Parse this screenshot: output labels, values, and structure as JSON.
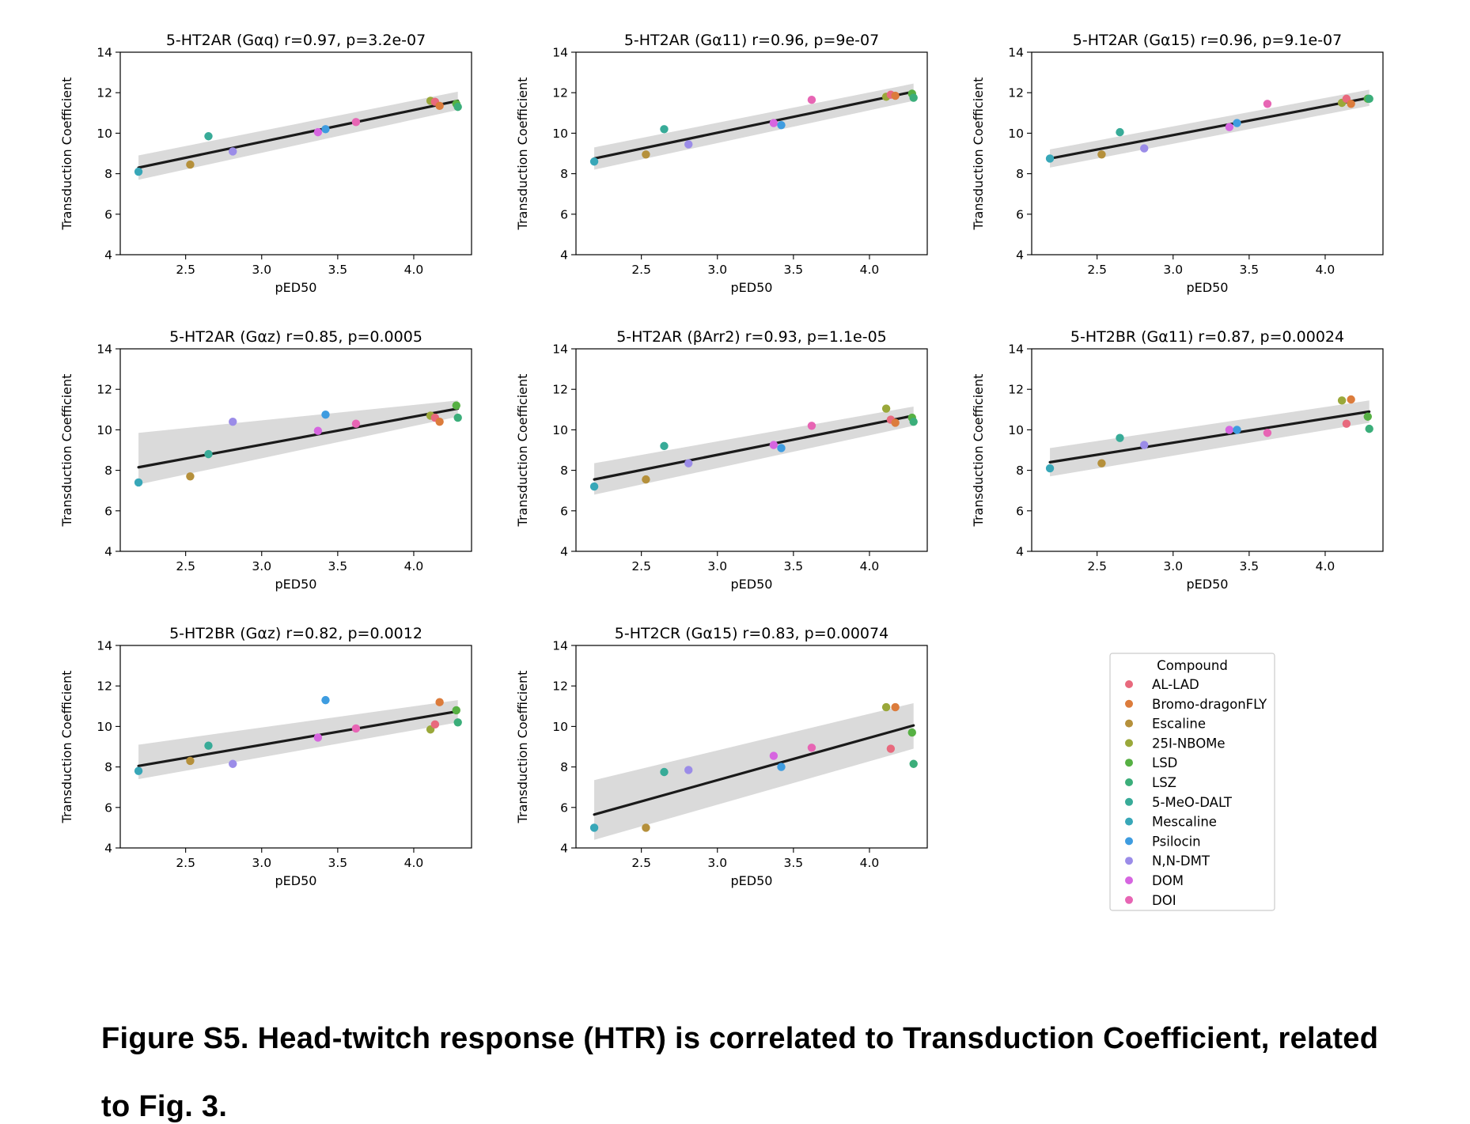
{
  "figure": {
    "caption_line1": "Figure S5. Head-twitch response (HTR) is correlated to Transduction Coefficient, related",
    "caption_line2": "to Fig. 3."
  },
  "legend": {
    "title": "Compound",
    "items": [
      {
        "name": "AL-LAD",
        "color": "#e8697d"
      },
      {
        "name": "Bromo-dragonFLY",
        "color": "#dc7c3c"
      },
      {
        "name": "Escaline",
        "color": "#b5903b"
      },
      {
        "name": "25I-NBOMe",
        "color": "#9aa83a"
      },
      {
        "name": "LSD",
        "color": "#56b043"
      },
      {
        "name": "LSZ",
        "color": "#3bae7a"
      },
      {
        "name": "5-MeO-DALT",
        "color": "#38ab98"
      },
      {
        "name": "Mescaline",
        "color": "#38a7b8"
      },
      {
        "name": "Psilocin",
        "color": "#3e9ce0"
      },
      {
        "name": "N,N-DMT",
        "color": "#9b8ce8"
      },
      {
        "name": "DOM",
        "color": "#d665e0"
      },
      {
        "name": "DOI",
        "color": "#e765b4"
      }
    ]
  },
  "chart_data": [
    {
      "type": "scatter",
      "title": "5-HT2AR (Gαq) r=0.97, p=3.2e-07",
      "xlabel": "pED50",
      "ylabel": "Transduction Coefficient",
      "xlim": [
        2.07,
        4.38
      ],
      "ylim": [
        4,
        14
      ],
      "xticks": [
        "2.5",
        "3.0",
        "3.5",
        "4.0"
      ],
      "yticks": [
        "4",
        "6",
        "8",
        "10",
        "12",
        "14"
      ],
      "points": [
        {
          "compound": "Mescaline",
          "x": 2.19,
          "y": 8.1
        },
        {
          "compound": "Escaline",
          "x": 2.53,
          "y": 8.45
        },
        {
          "compound": "5-MeO-DALT",
          "x": 2.65,
          "y": 9.85
        },
        {
          "compound": "N,N-DMT",
          "x": 2.81,
          "y": 9.1
        },
        {
          "compound": "DOM",
          "x": 3.37,
          "y": 10.05
        },
        {
          "compound": "Psilocin",
          "x": 3.42,
          "y": 10.2
        },
        {
          "compound": "DOI",
          "x": 3.62,
          "y": 10.55
        },
        {
          "compound": "25I-NBOMe",
          "x": 4.11,
          "y": 11.6
        },
        {
          "compound": "AL-LAD",
          "x": 4.14,
          "y": 11.55
        },
        {
          "compound": "Bromo-dragonFLY",
          "x": 4.17,
          "y": 11.35
        },
        {
          "compound": "LSD",
          "x": 4.28,
          "y": 11.45
        },
        {
          "compound": "LSZ",
          "x": 4.29,
          "y": 11.3
        }
      ],
      "fit": {
        "x": [
          2.19,
          4.29
        ],
        "y": [
          8.3,
          11.6
        ],
        "ci_lower": [
          7.7,
          11.15
        ],
        "ci_upper": [
          8.9,
          12.05
        ]
      }
    },
    {
      "type": "scatter",
      "title": "5-HT2AR (Gα11) r=0.96, p=9e-07",
      "xlabel": "pED50",
      "ylabel": "Transduction Coefficient",
      "xlim": [
        2.07,
        4.38
      ],
      "ylim": [
        4,
        14
      ],
      "xticks": [
        "2.5",
        "3.0",
        "3.5",
        "4.0"
      ],
      "yticks": [
        "4",
        "6",
        "8",
        "10",
        "12",
        "14"
      ],
      "points": [
        {
          "compound": "Mescaline",
          "x": 2.19,
          "y": 8.6
        },
        {
          "compound": "Escaline",
          "x": 2.53,
          "y": 8.95
        },
        {
          "compound": "5-MeO-DALT",
          "x": 2.65,
          "y": 10.2
        },
        {
          "compound": "N,N-DMT",
          "x": 2.81,
          "y": 9.45
        },
        {
          "compound": "DOM",
          "x": 3.37,
          "y": 10.5
        },
        {
          "compound": "Psilocin",
          "x": 3.42,
          "y": 10.4
        },
        {
          "compound": "DOI",
          "x": 3.62,
          "y": 11.65
        },
        {
          "compound": "25I-NBOMe",
          "x": 4.11,
          "y": 11.8
        },
        {
          "compound": "AL-LAD",
          "x": 4.14,
          "y": 11.9
        },
        {
          "compound": "Bromo-dragonFLY",
          "x": 4.17,
          "y": 11.85
        },
        {
          "compound": "LSD",
          "x": 4.28,
          "y": 11.95
        },
        {
          "compound": "LSZ",
          "x": 4.29,
          "y": 11.75
        }
      ],
      "fit": {
        "x": [
          2.19,
          4.29
        ],
        "y": [
          8.75,
          12.05
        ],
        "ci_lower": [
          8.2,
          11.6
        ],
        "ci_upper": [
          9.3,
          12.45
        ]
      }
    },
    {
      "type": "scatter",
      "title": "5-HT2AR (Gα15) r=0.96, p=9.1e-07",
      "xlabel": "pED50",
      "ylabel": "Transduction Coefficient",
      "xlim": [
        2.07,
        4.38
      ],
      "ylim": [
        4,
        14
      ],
      "xticks": [
        "2.5",
        "3.0",
        "3.5",
        "4.0"
      ],
      "yticks": [
        "4",
        "6",
        "8",
        "10",
        "12",
        "14"
      ],
      "points": [
        {
          "compound": "Mescaline",
          "x": 2.19,
          "y": 8.75
        },
        {
          "compound": "Escaline",
          "x": 2.53,
          "y": 8.95
        },
        {
          "compound": "5-MeO-DALT",
          "x": 2.65,
          "y": 10.05
        },
        {
          "compound": "N,N-DMT",
          "x": 2.81,
          "y": 9.25
        },
        {
          "compound": "DOM",
          "x": 3.37,
          "y": 10.3
        },
        {
          "compound": "Psilocin",
          "x": 3.42,
          "y": 10.5
        },
        {
          "compound": "DOI",
          "x": 3.62,
          "y": 11.45
        },
        {
          "compound": "25I-NBOMe",
          "x": 4.11,
          "y": 11.5
        },
        {
          "compound": "AL-LAD",
          "x": 4.14,
          "y": 11.7
        },
        {
          "compound": "Bromo-dragonFLY",
          "x": 4.17,
          "y": 11.45
        },
        {
          "compound": "LSD",
          "x": 4.28,
          "y": 11.7
        },
        {
          "compound": "LSZ",
          "x": 4.29,
          "y": 11.7
        }
      ],
      "fit": {
        "x": [
          2.19,
          4.29
        ],
        "y": [
          8.75,
          11.75
        ],
        "ci_lower": [
          8.3,
          11.35
        ],
        "ci_upper": [
          9.2,
          12.15
        ]
      }
    },
    {
      "type": "scatter",
      "title": "5-HT2AR (Gαz) r=0.85, p=0.0005",
      "xlabel": "pED50",
      "ylabel": "Transduction Coefficient",
      "xlim": [
        2.07,
        4.38
      ],
      "ylim": [
        4,
        14
      ],
      "xticks": [
        "2.5",
        "3.0",
        "3.5",
        "4.0"
      ],
      "yticks": [
        "4",
        "6",
        "8",
        "10",
        "12",
        "14"
      ],
      "points": [
        {
          "compound": "Mescaline",
          "x": 2.19,
          "y": 7.4
        },
        {
          "compound": "Escaline",
          "x": 2.53,
          "y": 7.7
        },
        {
          "compound": "5-MeO-DALT",
          "x": 2.65,
          "y": 8.8
        },
        {
          "compound": "N,N-DMT",
          "x": 2.81,
          "y": 10.4
        },
        {
          "compound": "DOM",
          "x": 3.37,
          "y": 9.95
        },
        {
          "compound": "Psilocin",
          "x": 3.42,
          "y": 10.75
        },
        {
          "compound": "DOI",
          "x": 3.62,
          "y": 10.3
        },
        {
          "compound": "25I-NBOMe",
          "x": 4.11,
          "y": 10.7
        },
        {
          "compound": "AL-LAD",
          "x": 4.14,
          "y": 10.6
        },
        {
          "compound": "Bromo-dragonFLY",
          "x": 4.17,
          "y": 10.4
        },
        {
          "compound": "LSD",
          "x": 4.28,
          "y": 11.2
        },
        {
          "compound": "LSZ",
          "x": 4.29,
          "y": 10.6
        }
      ],
      "fit": {
        "x": [
          2.19,
          4.29
        ],
        "y": [
          8.15,
          11.05
        ],
        "ci_lower": [
          7.3,
          10.65
        ],
        "ci_upper": [
          9.85,
          11.45
        ]
      }
    },
    {
      "type": "scatter",
      "title": "5-HT2AR (βArr2) r=0.93, p=1.1e-05",
      "xlabel": "pED50",
      "ylabel": "Transduction Coefficient",
      "xlim": [
        2.07,
        4.38
      ],
      "ylim": [
        4,
        14
      ],
      "xticks": [
        "2.5",
        "3.0",
        "3.5",
        "4.0"
      ],
      "yticks": [
        "4",
        "6",
        "8",
        "10",
        "12",
        "14"
      ],
      "points": [
        {
          "compound": "Mescaline",
          "x": 2.19,
          "y": 7.2
        },
        {
          "compound": "Escaline",
          "x": 2.53,
          "y": 7.55
        },
        {
          "compound": "5-MeO-DALT",
          "x": 2.65,
          "y": 9.2
        },
        {
          "compound": "N,N-DMT",
          "x": 2.81,
          "y": 8.35
        },
        {
          "compound": "DOM",
          "x": 3.37,
          "y": 9.25
        },
        {
          "compound": "Psilocin",
          "x": 3.42,
          "y": 9.1
        },
        {
          "compound": "DOI",
          "x": 3.62,
          "y": 10.2
        },
        {
          "compound": "25I-NBOMe",
          "x": 4.11,
          "y": 11.05
        },
        {
          "compound": "AL-LAD",
          "x": 4.14,
          "y": 10.5
        },
        {
          "compound": "Bromo-dragonFLY",
          "x": 4.17,
          "y": 10.35
        },
        {
          "compound": "LSD",
          "x": 4.28,
          "y": 10.6
        },
        {
          "compound": "LSZ",
          "x": 4.29,
          "y": 10.4
        }
      ],
      "fit": {
        "x": [
          2.19,
          4.29
        ],
        "y": [
          7.55,
          10.7
        ],
        "ci_lower": [
          6.8,
          10.2
        ],
        "ci_upper": [
          8.35,
          11.15
        ]
      }
    },
    {
      "type": "scatter",
      "title": "5-HT2BR (Gα11) r=0.87, p=0.00024",
      "xlabel": "pED50",
      "ylabel": "Transduction Coefficient",
      "xlim": [
        2.07,
        4.38
      ],
      "ylim": [
        4,
        14
      ],
      "xticks": [
        "2.5",
        "3.0",
        "3.5",
        "4.0"
      ],
      "yticks": [
        "4",
        "6",
        "8",
        "10",
        "12",
        "14"
      ],
      "points": [
        {
          "compound": "Mescaline",
          "x": 2.19,
          "y": 8.1
        },
        {
          "compound": "Escaline",
          "x": 2.53,
          "y": 8.35
        },
        {
          "compound": "5-MeO-DALT",
          "x": 2.65,
          "y": 9.6
        },
        {
          "compound": "N,N-DMT",
          "x": 2.81,
          "y": 9.25
        },
        {
          "compound": "DOM",
          "x": 3.37,
          "y": 10.0
        },
        {
          "compound": "Psilocin",
          "x": 3.42,
          "y": 10.0
        },
        {
          "compound": "DOI",
          "x": 3.62,
          "y": 9.85
        },
        {
          "compound": "25I-NBOMe",
          "x": 4.11,
          "y": 11.45
        },
        {
          "compound": "AL-LAD",
          "x": 4.14,
          "y": 10.3
        },
        {
          "compound": "Bromo-dragonFLY",
          "x": 4.17,
          "y": 11.5
        },
        {
          "compound": "LSD",
          "x": 4.28,
          "y": 10.65
        },
        {
          "compound": "LSZ",
          "x": 4.29,
          "y": 10.05
        }
      ],
      "fit": {
        "x": [
          2.19,
          4.29
        ],
        "y": [
          8.4,
          10.9
        ],
        "ci_lower": [
          7.7,
          10.35
        ],
        "ci_upper": [
          9.1,
          11.45
        ]
      }
    },
    {
      "type": "scatter",
      "title": "5-HT2BR (Gαz) r=0.82, p=0.0012",
      "xlabel": "pED50",
      "ylabel": "Transduction Coefficient",
      "xlim": [
        2.07,
        4.38
      ],
      "ylim": [
        4,
        14
      ],
      "xticks": [
        "2.5",
        "3.0",
        "3.5",
        "4.0"
      ],
      "yticks": [
        "4",
        "6",
        "8",
        "10",
        "12",
        "14"
      ],
      "points": [
        {
          "compound": "Mescaline",
          "x": 2.19,
          "y": 7.8
        },
        {
          "compound": "Escaline",
          "x": 2.53,
          "y": 8.3
        },
        {
          "compound": "5-MeO-DALT",
          "x": 2.65,
          "y": 9.05
        },
        {
          "compound": "N,N-DMT",
          "x": 2.81,
          "y": 8.15
        },
        {
          "compound": "DOM",
          "x": 3.37,
          "y": 9.45
        },
        {
          "compound": "Psilocin",
          "x": 3.42,
          "y": 11.3
        },
        {
          "compound": "DOI",
          "x": 3.62,
          "y": 9.9
        },
        {
          "compound": "25I-NBOMe",
          "x": 4.11,
          "y": 9.85
        },
        {
          "compound": "AL-LAD",
          "x": 4.14,
          "y": 10.1
        },
        {
          "compound": "Bromo-dragonFLY",
          "x": 4.17,
          "y": 11.2
        },
        {
          "compound": "LSD",
          "x": 4.28,
          "y": 10.8
        },
        {
          "compound": "LSZ",
          "x": 4.29,
          "y": 10.2
        }
      ],
      "fit": {
        "x": [
          2.19,
          4.29
        ],
        "y": [
          8.05,
          10.75
        ],
        "ci_lower": [
          7.4,
          10.2
        ],
        "ci_upper": [
          9.1,
          11.3
        ]
      }
    },
    {
      "type": "scatter",
      "title": "5-HT2CR (Gα15) r=0.83, p=0.00074",
      "xlabel": "pED50",
      "ylabel": "Transduction Coefficient",
      "xlim": [
        2.07,
        4.38
      ],
      "ylim": [
        4,
        14
      ],
      "xticks": [
        "2.5",
        "3.0",
        "3.5",
        "4.0"
      ],
      "yticks": [
        "4",
        "6",
        "8",
        "10",
        "12",
        "14"
      ],
      "points": [
        {
          "compound": "Mescaline",
          "x": 2.19,
          "y": 5.0
        },
        {
          "compound": "Escaline",
          "x": 2.53,
          "y": 5.0
        },
        {
          "compound": "5-MeO-DALT",
          "x": 2.65,
          "y": 7.75
        },
        {
          "compound": "N,N-DMT",
          "x": 2.81,
          "y": 7.85
        },
        {
          "compound": "DOM",
          "x": 3.37,
          "y": 8.55
        },
        {
          "compound": "Psilocin",
          "x": 3.42,
          "y": 8.0
        },
        {
          "compound": "DOI",
          "x": 3.62,
          "y": 8.95
        },
        {
          "compound": "25I-NBOMe",
          "x": 4.11,
          "y": 10.95
        },
        {
          "compound": "AL-LAD",
          "x": 4.14,
          "y": 8.9
        },
        {
          "compound": "Bromo-dragonFLY",
          "x": 4.17,
          "y": 10.95
        },
        {
          "compound": "LSD",
          "x": 4.28,
          "y": 9.7
        },
        {
          "compound": "LSZ",
          "x": 4.29,
          "y": 8.15
        }
      ],
      "fit": {
        "x": [
          2.19,
          4.29
        ],
        "y": [
          5.65,
          10.05
        ],
        "ci_lower": [
          4.4,
          8.9
        ],
        "ci_upper": [
          7.35,
          11.15
        ]
      }
    }
  ]
}
